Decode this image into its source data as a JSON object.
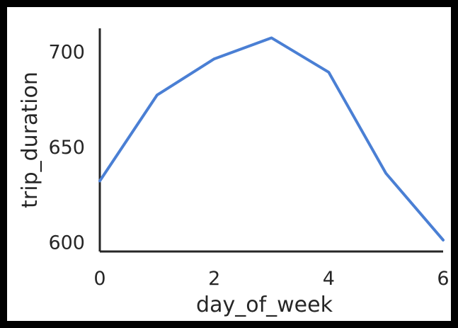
{
  "chart_data": {
    "type": "line",
    "title": "",
    "xlabel": "day_of_week",
    "ylabel": "trip_duration",
    "x": [
      0,
      1,
      2,
      3,
      4,
      5,
      6
    ],
    "series": [
      {
        "values": [
          632,
          677,
          696,
          707,
          689,
          636,
          601
        ],
        "color": "#4a7fd4"
      }
    ],
    "xlim": [
      0,
      6
    ],
    "ylim": [
      595,
      712
    ],
    "xticks": [
      0,
      2,
      4,
      6
    ],
    "yticks": [
      600,
      650,
      700
    ],
    "xtick_labels": [
      "0",
      "2",
      "4",
      "6"
    ],
    "ytick_labels": [
      "600",
      "650",
      "700"
    ],
    "grid": false,
    "spines": [
      "left",
      "bottom"
    ],
    "axis_color": "#262626",
    "background": "#ffffff"
  }
}
